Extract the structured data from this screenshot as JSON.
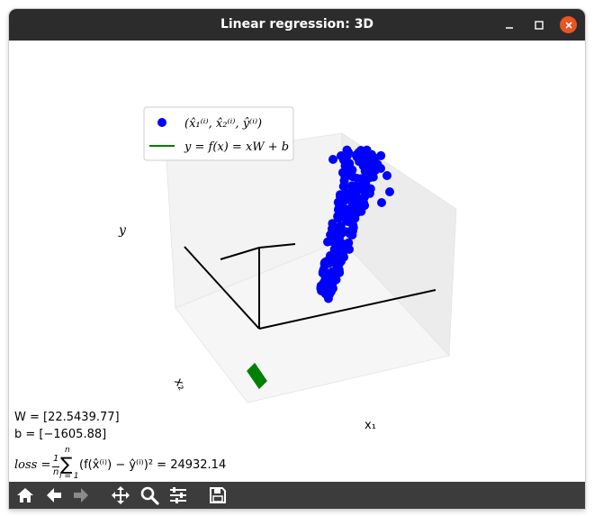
{
  "window": {
    "title": "Linear regression: 3D",
    "controls": [
      "minimize-icon",
      "maximize-icon",
      "close-icon"
    ],
    "close_color": "#e95420"
  },
  "plot": {
    "legend": [
      {
        "label": "(x̂₁⁽ⁱ⁾, x̂₂⁽ⁱ⁾, ŷ⁽ⁱ⁾)",
        "marker": "circle",
        "color": "#0000ff"
      },
      {
        "label": "y = f(x) = xW + b",
        "marker": "line",
        "color": "#008000"
      }
    ],
    "axis_labels": {
      "y": "y",
      "x1": "x₁",
      "x2": "x₂"
    },
    "projection": "3d"
  },
  "results": {
    "w_line": "W = [22.5439.77]",
    "b_line": "b = [−1605.88]",
    "loss_lhs": "loss =",
    "loss_frac_num": "1",
    "loss_frac_den": "n",
    "loss_sum_top": "n",
    "loss_sum_sign": "∑",
    "loss_sum_bottom": "i = 1",
    "loss_body": "(f(x̂⁽ⁱ⁾) − ŷ⁽ⁱ⁾)² = 24932.14"
  },
  "toolbar": {
    "buttons": [
      {
        "name": "home-icon",
        "enabled": true
      },
      {
        "name": "back-arrow-icon",
        "enabled": true
      },
      {
        "name": "forward-arrow-icon",
        "enabled": false
      },
      {
        "name": "pan-icon",
        "enabled": true
      },
      {
        "name": "zoom-icon",
        "enabled": true
      },
      {
        "name": "configure-subplots-icon",
        "enabled": true
      },
      {
        "name": "save-icon",
        "enabled": true
      }
    ]
  },
  "colors": {
    "titlebar": "#2c2c2c",
    "toolbar": "#3c3c3c",
    "points": "#0000ff",
    "fit_line": "#008000",
    "pane": "#f2f2f2"
  }
}
